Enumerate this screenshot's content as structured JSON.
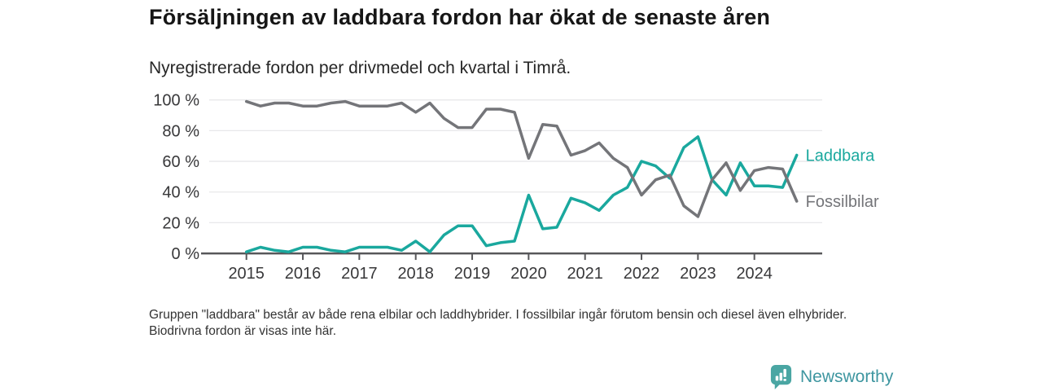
{
  "header": {
    "title": "Försäljningen av laddbara fordon har ökat de senaste åren",
    "subtitle": "Nyregistrerade fordon per drivmedel och kvartal i Timrå."
  },
  "chart_data": {
    "type": "line",
    "title": "Försäljningen av laddbara fordon har ökat de senaste åren",
    "subtitle": "Nyregistrerade fordon per drivmedel och kvartal i Timrå.",
    "x_unit": "quarter",
    "x_start": "2015 Q1",
    "x_end": "2024 Q4",
    "points_per_year": 4,
    "year_ticks": [
      "2015",
      "2016",
      "2017",
      "2018",
      "2019",
      "2020",
      "2021",
      "2022",
      "2023",
      "2024"
    ],
    "yticks": [
      100,
      80,
      60,
      40,
      20,
      0
    ],
    "ytick_suffix": " %",
    "ylim": [
      0,
      100
    ],
    "grid": true,
    "legend_position": "line-end-labels-right",
    "series": [
      {
        "name": "Laddbara",
        "color": "#1aa89e",
        "values": [
          1,
          4,
          2,
          1,
          4,
          4,
          2,
          1,
          4,
          4,
          4,
          2,
          8,
          1,
          12,
          18,
          18,
          5,
          7,
          8,
          38,
          16,
          17,
          36,
          33,
          28,
          38,
          43,
          60,
          57,
          49,
          69,
          76,
          48,
          38,
          59,
          44,
          44,
          43,
          64
        ]
      },
      {
        "name": "Fossilbilar",
        "color": "#747579",
        "values": [
          99,
          96,
          98,
          98,
          96,
          96,
          98,
          99,
          96,
          96,
          96,
          98,
          92,
          98,
          88,
          82,
          82,
          94,
          94,
          92,
          62,
          84,
          83,
          64,
          67,
          72,
          62,
          56,
          38,
          48,
          51,
          31,
          24,
          48,
          59,
          41,
          54,
          56,
          55,
          34
        ]
      }
    ]
  },
  "footnote": {
    "text": "Gruppen \"laddbara\" består av både rena elbilar och laddhybrider. I fossilbilar ingår förutom bensin och diesel även elhybrider. Biodrivna fordon är visas inte här."
  },
  "logo": {
    "text": "Newsworthy",
    "icon": "newsworthy-bar-chart-pin-icon",
    "icon_color": "#4aa6a3",
    "text_color": "#3e96a0"
  },
  "colors": {
    "grid": "#e8e8ea",
    "axis": "#57575a",
    "tick_label": "#38383a"
  }
}
